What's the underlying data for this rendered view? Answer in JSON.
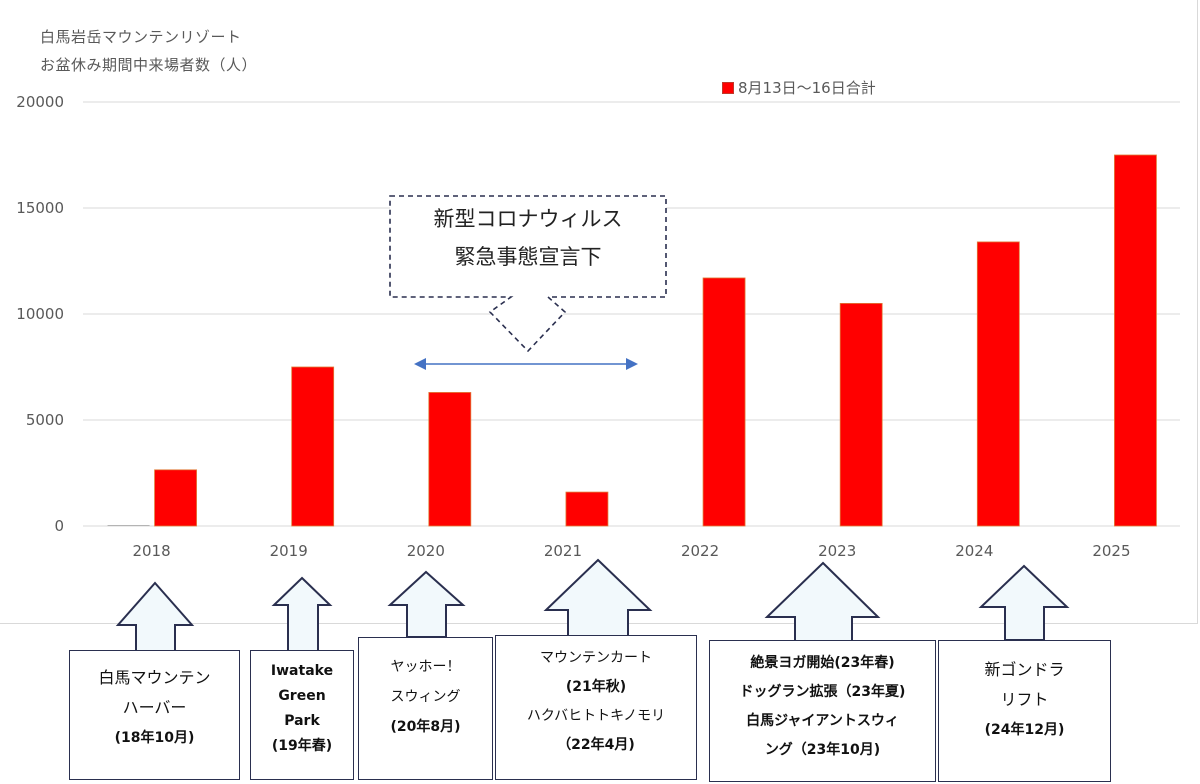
{
  "chart_data": {
    "type": "bar",
    "title_lines": [
      "白馬岩岳マウンテンリゾート",
      "お盆休み期間中来場者数（人）"
    ],
    "categories": [
      "2018",
      "2019",
      "2020",
      "2021",
      "2022",
      "2023",
      "2024",
      "2025"
    ],
    "series": [
      {
        "values": [
          40,
          0,
          0,
          0,
          0,
          0,
          0,
          0
        ],
        "color": "#a6a6a6"
      },
      {
        "name": "8月13日〜16日合計",
        "values": [
          2650,
          7500,
          6300,
          1600,
          11700,
          10500,
          13400,
          17500
        ],
        "color": "#ff0000"
      }
    ],
    "ylim": [
      0,
      20000
    ],
    "yticks": [
      0,
      5000,
      10000,
      15000,
      20000
    ],
    "grid": true,
    "legend_position": "top-right"
  },
  "covid_callout": {
    "lines": [
      "新型コロナウィルス",
      "緊急事態宣言下"
    ]
  },
  "annotations": [
    {
      "lines": [
        "白馬マウンテン",
        "ハーバー",
        "(18年10月)"
      ]
    },
    {
      "lines": [
        "Iwatake",
        "Green",
        "Park",
        "(19年春)"
      ]
    },
    {
      "lines": [
        "ヤッホー！",
        "スウィング",
        "(20年8月)"
      ]
    },
    {
      "lines": [
        "マウンテンカート",
        "(21年秋)",
        "ハクバヒトトキノモリ",
        "（22年4月)"
      ]
    },
    {
      "lines": [
        "絶景ヨガ開始(23年春)",
        "ドッグラン拡張（23年夏)",
        "白馬ジャイアントスウィ",
        "ング（23年10月)"
      ]
    },
    {
      "lines": [
        "新ゴンドラ",
        "リフト",
        "(24年12月)"
      ]
    }
  ]
}
